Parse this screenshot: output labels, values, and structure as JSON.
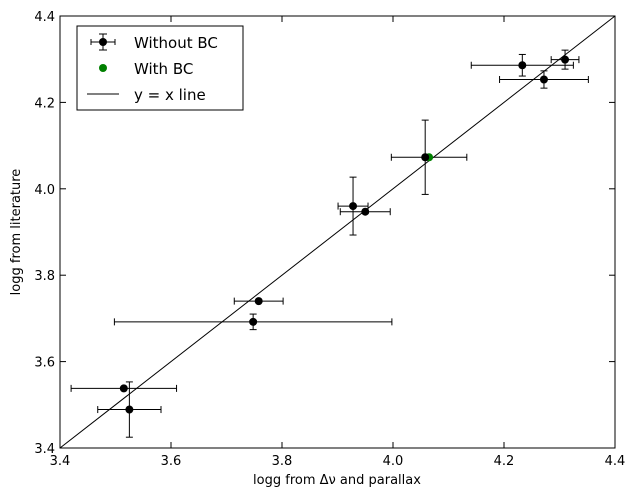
{
  "chart_data": {
    "type": "scatter",
    "title": "",
    "xlabel": "logg from Δν and parallax",
    "ylabel": "logg from literature",
    "xlim": [
      3.4,
      4.4
    ],
    "ylim": [
      3.4,
      4.4
    ],
    "xticks": [
      "3.4",
      "3.6",
      "3.8",
      "4.0",
      "4.2",
      "4.4"
    ],
    "yticks": [
      "3.4",
      "3.6",
      "3.8",
      "4.0",
      "4.2",
      "4.4"
    ],
    "grid": false,
    "legend_position": "top-left",
    "series": [
      {
        "name": "Without BC",
        "color": "#000000",
        "marker": "circle",
        "points": [
          {
            "x": 3.515,
            "y": 3.538,
            "xerr": 0.095,
            "yerr": 0.0
          },
          {
            "x": 3.525,
            "y": 3.489,
            "xerr": 0.057,
            "yerr": 0.064
          },
          {
            "x": 3.748,
            "y": 3.692,
            "xerr": 0.25,
            "yerr": 0.018
          },
          {
            "x": 3.758,
            "y": 3.74,
            "xerr": 0.044,
            "yerr": 0.0
          },
          {
            "x": 3.928,
            "y": 3.96,
            "xerr": 0.027,
            "yerr": 0.067
          },
          {
            "x": 3.95,
            "y": 3.947,
            "xerr": 0.045,
            "yerr": 0.0
          },
          {
            "x": 4.058,
            "y": 4.073,
            "xerr": 0.0,
            "yerr": 0.086
          },
          {
            "x": 4.233,
            "y": 4.286,
            "xerr": 0.092,
            "yerr": 0.025
          },
          {
            "x": 4.272,
            "y": 4.253,
            "xerr": 0.08,
            "yerr": 0.02
          },
          {
            "x": 4.31,
            "y": 4.299,
            "xerr": 0.025,
            "yerr": 0.022
          }
        ],
        "extra_errorbars": [
          {
            "x": 4.065,
            "y": 4.073,
            "xerr": 0.068,
            "yerr": 0.0
          }
        ]
      },
      {
        "name": "With BC",
        "color": "#008000",
        "marker": "circle",
        "points": [
          {
            "x": 4.065,
            "y": 4.073
          }
        ]
      }
    ],
    "reference_line": {
      "name": "y = x line",
      "color": "#000000",
      "x": [
        3.4,
        4.4
      ],
      "y": [
        3.4,
        4.4
      ]
    }
  }
}
